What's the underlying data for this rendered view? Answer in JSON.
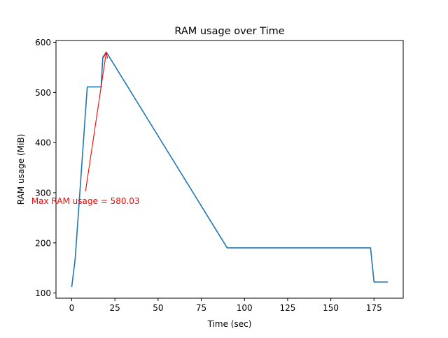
{
  "chart_data": {
    "type": "line",
    "title": "RAM usage over Time",
    "xlabel": "Time (sec)",
    "ylabel": "RAM usage (MiB)",
    "xlim": [
      -9.1,
      191.9
    ],
    "ylim": [
      89.7,
      603.5
    ],
    "xticks": [
      0,
      25,
      50,
      75,
      100,
      125,
      150,
      175
    ],
    "yticks": [
      100,
      200,
      300,
      400,
      500,
      600
    ],
    "grid": false,
    "legend": "none",
    "series": [
      {
        "color": "#1f77b4",
        "x": [
          0,
          2,
          9,
          17,
          18,
          20,
          21,
          90,
          173,
          175,
          183
        ],
        "y": [
          112,
          168,
          511,
          511,
          570,
          580.03,
          575,
          190,
          190,
          122,
          122
        ]
      }
    ],
    "annotation": {
      "text": "Max RAM usage = 580.03",
      "color": "#ff0000",
      "text_x": 8,
      "text_y": 284,
      "arrow_from": [
        8,
        303
      ],
      "arrow_to": [
        20,
        580.03
      ]
    }
  }
}
